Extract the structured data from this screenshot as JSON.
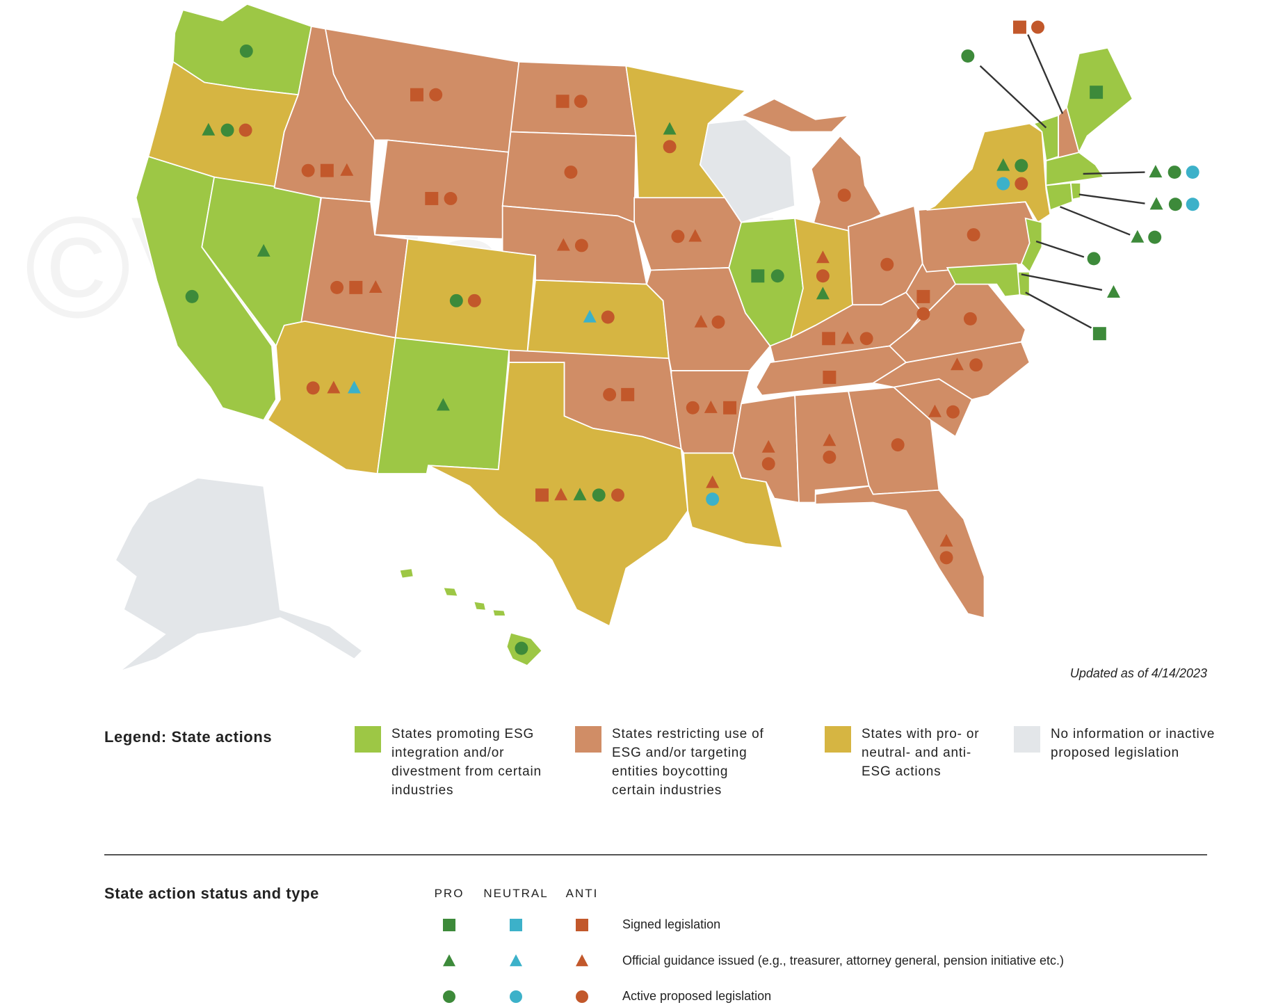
{
  "watermark": "©Verdant LLC",
  "updated": "Updated as of 4/14/2023",
  "legend": {
    "title": "Legend: State actions",
    "items": [
      {
        "label": "States promoting ESG integration and/or divestment from certain industries",
        "color": "#9dc745"
      },
      {
        "label": "States restricting use of ESG and/or targeting entities boycotting certain industries",
        "color": "#d08d66"
      },
      {
        "label": "States with pro- or neutral- and anti-ESG actions",
        "color": "#d6b542"
      },
      {
        "label": "No information or inactive proposed legislation",
        "color": "#e3e6e9"
      }
    ]
  },
  "status": {
    "title": "State action status and type",
    "columns": [
      {
        "label": "PRO",
        "color": "#3d8a3a"
      },
      {
        "label": "NEUTRAL",
        "color": "#3cb1c9"
      },
      {
        "label": "ANTI",
        "color": "#c2582b"
      }
    ],
    "rows": [
      "Signed legislation",
      "Official guidance issued (e.g., treasurer, attorney general, pension initiative etc.)",
      "Active proposed legislation"
    ]
  }
}
